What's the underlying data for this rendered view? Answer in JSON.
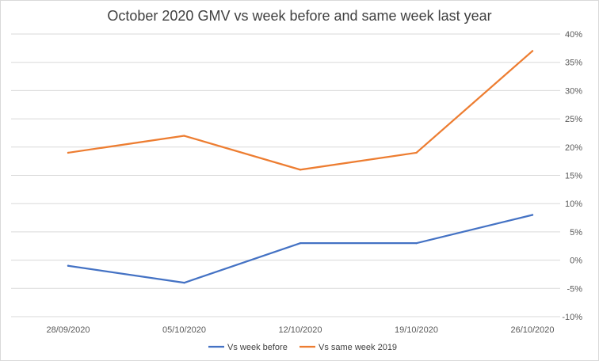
{
  "chart_data": {
    "type": "line",
    "title": "October 2020 GMV vs week before and same week last year",
    "categories": [
      "28/09/2020",
      "05/10/2020",
      "12/10/2020",
      "19/10/2020",
      "26/10/2020"
    ],
    "series": [
      {
        "name": "Vs week before",
        "values": [
          -1,
          -4,
          3,
          3,
          8
        ],
        "color": "#4472c4"
      },
      {
        "name": "Vs same week 2019",
        "values": [
          19,
          22,
          16,
          19,
          37
        ],
        "color": "#ed7d31"
      }
    ],
    "y_ticks": [
      "40%",
      "35%",
      "30%",
      "25%",
      "20%",
      "15%",
      "10%",
      "5%",
      "0%",
      "-5%",
      "-10%"
    ],
    "ylim": [
      -10,
      40
    ],
    "y_unit": "%",
    "y_axis_side": "right",
    "grid": true,
    "legend_position": "bottom"
  }
}
